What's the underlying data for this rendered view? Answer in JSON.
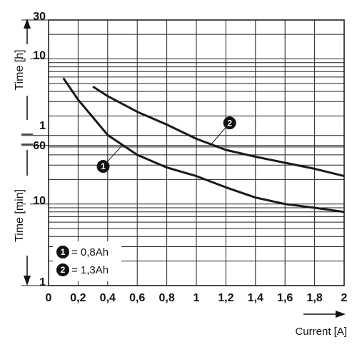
{
  "chart_data": {
    "type": "line",
    "y_label_upper": "Time [h]",
    "y_label_lower": "Time [min]",
    "x_label": "Current [A]",
    "xlim": [
      0,
      2
    ],
    "xticks": [
      0,
      {
        "value": 0.2,
        "label": "0,2"
      },
      {
        "value": 0.4,
        "label": "0,4"
      },
      {
        "value": 0.6,
        "label": "0,6"
      },
      {
        "value": 0.8,
        "label": "0,8"
      },
      1,
      {
        "value": 1.2,
        "label": "1,2"
      },
      {
        "value": 1.4,
        "label": "1,4"
      },
      {
        "value": 1.6,
        "label": "1,6"
      },
      {
        "value": 1.8,
        "label": "1,8"
      },
      2
    ],
    "ylim": [
      1,
      1800
    ],
    "log_y": true,
    "yticks": [
      {
        "value": 1800,
        "label": "30"
      },
      {
        "value": 600,
        "label": "10"
      },
      {
        "value": 60,
        "label": "1"
      },
      60,
      {
        "value": 10,
        "label": "10"
      },
      {
        "value": 1,
        "label": "1"
      }
    ],
    "yminor": [
      2,
      3,
      4,
      5,
      6,
      7,
      8,
      9,
      20,
      30,
      40,
      50,
      120,
      180,
      240,
      300,
      360,
      420,
      480,
      540,
      1200
    ],
    "grid": true,
    "series": [
      {
        "name": "= 0,8Ah",
        "marker": "1",
        "color": "#1a1a1a",
        "x": [
          0.1,
          0.2,
          0.4,
          0.6,
          0.8,
          1.0,
          1.2,
          1.4,
          1.6,
          1.8,
          2.0
        ],
        "values": [
          350,
          190,
          70,
          40,
          28,
          22,
          16,
          12,
          10,
          9,
          8
        ]
      },
      {
        "name": "= 1,3Ah",
        "marker": "2",
        "color": "#1a1a1a",
        "x": [
          0.3,
          0.4,
          0.6,
          0.8,
          1.0,
          1.2,
          1.4,
          1.6,
          1.8,
          2.0
        ],
        "values": [
          275,
          210,
          135,
          94,
          63,
          46,
          38,
          32,
          27,
          22
        ]
      }
    ]
  }
}
